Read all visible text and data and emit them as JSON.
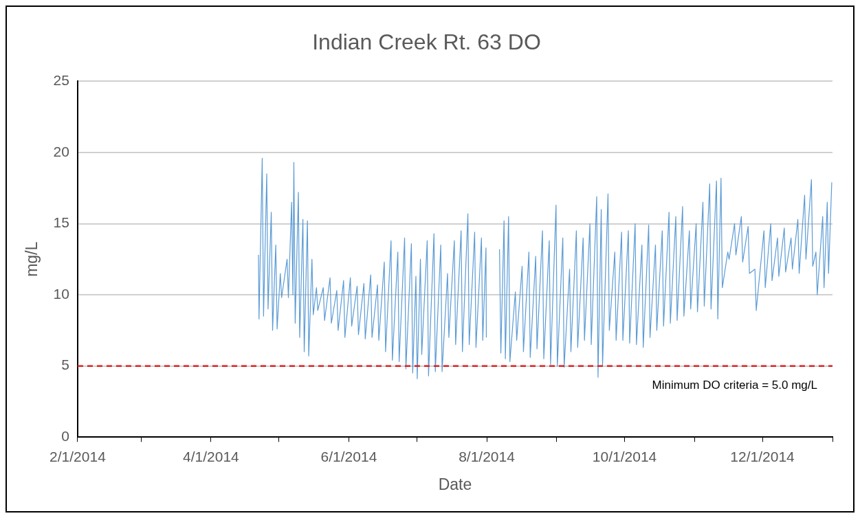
{
  "chart_data": {
    "type": "line",
    "title": "Indian Creek Rt. 63 DO",
    "xlabel": "Date",
    "ylabel": "mg/L",
    "xlim": [
      "2014-02-01",
      "2015-01-01"
    ],
    "xticks": [
      {
        "value": "2014-02-01",
        "label": "2/1/2014"
      },
      {
        "value": "2014-03-01",
        "label": null
      },
      {
        "value": "2014-04-01",
        "label": "4/1/2014"
      },
      {
        "value": "2014-05-01",
        "label": null
      },
      {
        "value": "2014-06-01",
        "label": "6/1/2014"
      },
      {
        "value": "2014-07-01",
        "label": null
      },
      {
        "value": "2014-08-01",
        "label": "8/1/2014"
      },
      {
        "value": "2014-09-01",
        "label": null
      },
      {
        "value": "2014-10-01",
        "label": "10/1/2014"
      },
      {
        "value": "2014-11-01",
        "label": null
      },
      {
        "value": "2014-12-01",
        "label": "12/1/2014"
      },
      {
        "value": "2015-01-01",
        "label": null
      }
    ],
    "ylim": [
      0,
      25
    ],
    "yticks": [
      0,
      5,
      10,
      15,
      20,
      25
    ],
    "grid": "y",
    "legend": false,
    "marker": "none",
    "line_style": "solid",
    "ref_lines": [
      {
        "axis": "y",
        "value": 5,
        "label": "Minimum DO criteria = 5.0 mg/L",
        "color": "#e02020",
        "line_style": "dashed"
      }
    ],
    "series": [
      {
        "color": "#5b9bd5",
        "x": [
          "2014-04-22T00:00",
          "2014-04-22T06:00",
          "2014-04-23T16:00",
          "2014-04-24T06:00",
          "2014-04-25T16:00",
          "2014-04-26T06:00",
          "2014-04-27T16:00",
          "2014-04-28T06:00",
          "2014-04-29T16:00",
          "2014-04-30T06:00",
          "2014-05-01T16:00",
          "2014-05-02T06:00",
          "2014-05-04T16:00",
          "2014-05-05T06:00",
          "2014-05-06T16:00",
          "2014-05-07T06:00",
          "2014-05-07T16:00",
          "2014-05-08T06:00",
          "2014-05-09T16:00",
          "2014-05-10T06:00",
          "2014-05-11T16:00",
          "2014-05-12T06:00",
          "2014-05-13T16:00",
          "2014-05-14T06:00",
          "2014-05-15T16:00",
          "2014-05-16T06:00",
          "2014-05-17T16:00",
          "2014-05-18T06:00",
          "2014-05-20T16:00",
          "2014-05-21T06:00",
          "2014-05-23T16:00",
          "2014-05-24T06:00",
          "2014-05-26T16:00",
          "2014-05-27T06:00",
          "2014-05-29T16:00",
          "2014-05-30T06:00",
          "2014-06-01T16:00",
          "2014-06-02T06:00",
          "2014-06-04T16:00",
          "2014-06-05T06:00",
          "2014-06-07T16:00",
          "2014-06-08T06:00",
          "2014-06-10T16:00",
          "2014-06-11T06:00",
          "2014-06-13T16:00",
          "2014-06-14T06:00",
          "2014-06-16T16:00",
          "2014-06-17T06:00",
          "2014-06-19T16:00",
          "2014-06-20T06:00",
          "2014-06-22T16:00",
          "2014-06-23T06:00",
          "2014-06-25T16:00",
          "2014-06-26T06:00",
          "2014-06-28T16:00",
          "2014-06-29T06:00",
          "2014-06-30T16:00",
          "2014-07-01T06:00",
          "2014-07-02T16:00",
          "2014-07-03T06:00",
          "2014-07-05T16:00",
          "2014-07-06T06:00",
          "2014-07-08T16:00",
          "2014-07-09T06:00",
          "2014-07-11T16:00",
          "2014-07-12T06:00",
          "2014-07-14T16:00",
          "2014-07-15T06:00",
          "2014-07-17T16:00",
          "2014-07-18T06:00",
          "2014-07-20T16:00",
          "2014-07-21T06:00",
          "2014-07-23T16:00",
          "2014-07-24T06:00",
          "2014-07-26T16:00",
          "2014-07-27T06:00",
          "2014-07-29T16:00",
          "2014-07-30T06:00",
          "2014-07-31T16:00",
          "2014-07-31T20:00",
          "2014-08-03T00:00",
          "2014-08-06T16:00",
          "2014-08-07T06:00",
          "2014-08-08T16:00",
          "2014-08-09T06:00",
          "2014-08-10T16:00",
          "2014-08-11T06:00",
          "2014-08-13T16:00",
          "2014-08-14T06:00",
          "2014-08-16T16:00",
          "2014-08-17T06:00",
          "2014-08-19T16:00",
          "2014-08-20T06:00",
          "2014-08-22T16:00",
          "2014-08-23T06:00",
          "2014-08-25T16:00",
          "2014-08-26T06:00",
          "2014-08-28T16:00",
          "2014-08-29T06:00",
          "2014-08-31T16:00",
          "2014-09-01T06:00",
          "2014-09-03T16:00",
          "2014-09-04T06:00",
          "2014-09-06T16:00",
          "2014-09-07T06:00",
          "2014-09-09T16:00",
          "2014-09-10T06:00",
          "2014-09-12T16:00",
          "2014-09-13T06:00",
          "2014-09-15T16:00",
          "2014-09-16T06:00",
          "2014-09-18T16:00",
          "2014-09-19T06:00",
          "2014-09-20T16:00",
          "2014-09-21T06:00",
          "2014-09-23T16:00",
          "2014-09-24T06:00",
          "2014-09-26T16:00",
          "2014-09-27T06:00",
          "2014-09-29T16:00",
          "2014-09-30T06:00",
          "2014-10-02T16:00",
          "2014-10-03T06:00",
          "2014-10-05T16:00",
          "2014-10-06T06:00",
          "2014-10-08T16:00",
          "2014-10-09T06:00",
          "2014-10-11T16:00",
          "2014-10-12T06:00",
          "2014-10-14T16:00",
          "2014-10-15T06:00",
          "2014-10-17T16:00",
          "2014-10-18T06:00",
          "2014-10-20T16:00",
          "2014-10-21T06:00",
          "2014-10-23T16:00",
          "2014-10-24T06:00",
          "2014-10-26T16:00",
          "2014-10-27T06:00",
          "2014-10-29T16:00",
          "2014-10-30T06:00",
          "2014-11-01T16:00",
          "2014-11-02T06:00",
          "2014-11-04T16:00",
          "2014-11-05T06:00",
          "2014-11-07T16:00",
          "2014-11-08T06:00",
          "2014-11-10T16:00",
          "2014-11-11T06:00",
          "2014-11-12T16:00",
          "2014-11-13T06:00",
          "2014-11-15T16:00",
          "2014-11-16T06:00",
          "2014-11-18T16:00",
          "2014-11-19T06:00",
          "2014-11-21T16:00",
          "2014-11-22T06:00",
          "2014-11-24T16:00",
          "2014-11-25T06:00",
          "2014-11-27T16:00",
          "2014-11-28T06:00",
          "2014-12-01T16:00",
          "2014-12-02T06:00",
          "2014-12-04T16:00",
          "2014-12-05T06:00",
          "2014-12-07T16:00",
          "2014-12-08T06:00",
          "2014-12-10T16:00",
          "2014-12-11T06:00",
          "2014-12-13T16:00",
          "2014-12-14T06:00",
          "2014-12-16T16:00",
          "2014-12-17T06:00",
          "2014-12-19T16:00",
          "2014-12-20T06:00",
          "2014-12-22T16:00",
          "2014-12-23T06:00",
          "2014-12-24T16:00",
          "2014-12-25T06:00",
          "2014-12-27T16:00",
          "2014-12-28T06:00",
          "2014-12-29T16:00",
          "2014-12-30T06:00",
          "2014-12-31T16:00"
        ],
        "values": [
          12.8,
          8.3,
          19.6,
          8.5,
          18.5,
          9,
          15.8,
          7.5,
          13.5,
          7.6,
          11.5,
          9.8,
          12.5,
          9.8,
          16.5,
          10,
          19.3,
          8,
          17.2,
          7,
          15.3,
          6,
          15.2,
          5.7,
          12.5,
          8.6,
          10.5,
          8.9,
          10.5,
          8.2,
          11.2,
          8,
          10.3,
          7.5,
          11,
          7,
          11.2,
          7.8,
          10.6,
          7.2,
          10.8,
          6.9,
          11.4,
          7,
          10.7,
          6.8,
          12.3,
          6,
          13.8,
          5.4,
          13,
          5.3,
          14,
          4.8,
          13.6,
          4.5,
          11.3,
          4.1,
          12.5,
          5.8,
          13.8,
          4.3,
          14.3,
          4.6,
          13.5,
          4.6,
          11.5,
          7,
          13.8,
          6.5,
          14.5,
          6,
          15.7,
          6.5,
          14.4,
          6.3,
          14,
          6.8,
          13.3,
          7,
          null,
          13.2,
          5.9,
          15.2,
          5.5,
          15.5,
          5.3,
          10.2,
          6.8,
          12,
          6,
          13,
          5.6,
          12.7,
          6.2,
          14.5,
          5.5,
          13.8,
          5.1,
          16.3,
          5,
          14,
          4.9,
          11.8,
          6,
          14.5,
          6.3,
          14,
          6.8,
          15,
          6.5,
          16.9,
          4.2,
          16,
          5,
          17.1,
          7.5,
          13,
          6.8,
          14.4,
          6.8,
          14.5,
          6.6,
          15,
          6.5,
          13.5,
          6.3,
          14.9,
          7,
          13.5,
          7.5,
          14.5,
          7.8,
          15.8,
          8,
          15.5,
          8.2,
          16.2,
          8.5,
          14.5,
          9,
          15,
          8.8,
          16.5,
          9.2,
          17.8,
          9,
          18,
          8.3,
          18.2,
          10.5,
          13,
          12.5,
          15,
          12.8,
          15.5,
          12.3,
          14.8,
          11.5,
          11.8,
          8.9,
          14.5,
          10.5,
          15,
          11,
          14,
          11.3,
          14.7,
          11.6,
          14,
          11.8,
          15.3,
          11.5,
          17,
          12.5,
          18.1,
          12,
          13,
          10,
          15.5,
          10.5,
          16.5,
          11.5,
          17.9
        ]
      }
    ]
  }
}
